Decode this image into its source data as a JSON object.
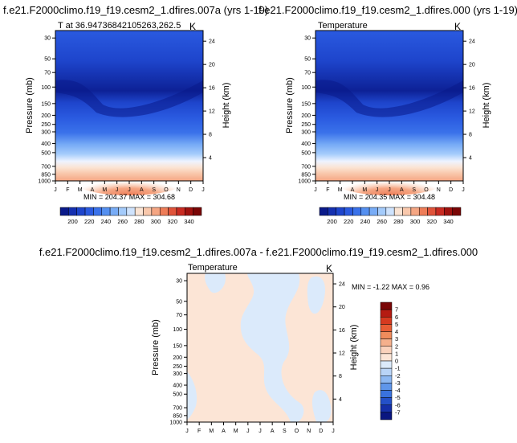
{
  "chart_data": [
    {
      "type": "heatmap",
      "title": "f.e21.F2000climo.f19_f19.cesm2_1.dfires.007a (yrs 1-19)",
      "subtitle_left": "T at 36.94736842105263,262.5",
      "subtitle_right": "K",
      "xlabel": "",
      "ylabel": "Pressure (mb)",
      "ylabel_right": "Height (km)",
      "x_ticks": [
        "J",
        "F",
        "M",
        "A",
        "M",
        "J",
        "J",
        "A",
        "S",
        "O",
        "N",
        "D",
        "J"
      ],
      "y_ticks": [
        "30",
        "50",
        "70",
        "100",
        "150",
        "200",
        "250",
        "300",
        "400",
        "500",
        "700",
        "850",
        "1000"
      ],
      "y2_ticks": [
        "24",
        "20",
        "16",
        "12",
        "8",
        "4"
      ],
      "stats": "MIN = 204.37  MAX = 304.68",
      "min": 204.37,
      "max": 304.68,
      "colorbar_labels": [
        "200",
        "220",
        "240",
        "260",
        "280",
        "300",
        "320",
        "340"
      ]
    },
    {
      "type": "heatmap",
      "title": "f.e21.F2000climo.f19_f19.cesm2_1.dfires.000 (yrs 1-19)",
      "subtitle_left": "Temperature",
      "subtitle_right": "K",
      "xlabel": "",
      "ylabel": "Pressure (mb)",
      "ylabel_right": "Height (km)",
      "x_ticks": [
        "J",
        "F",
        "M",
        "A",
        "M",
        "J",
        "J",
        "A",
        "S",
        "O",
        "N",
        "D",
        "J"
      ],
      "y_ticks": [
        "30",
        "50",
        "70",
        "100",
        "150",
        "200",
        "250",
        "300",
        "400",
        "500",
        "700",
        "850",
        "1000"
      ],
      "y2_ticks": [
        "24",
        "20",
        "16",
        "12",
        "8",
        "4"
      ],
      "stats": "MIN = 204.35  MAX = 304.48",
      "min": 204.35,
      "max": 304.48,
      "colorbar_labels": [
        "200",
        "220",
        "240",
        "260",
        "280",
        "300",
        "320",
        "340"
      ]
    },
    {
      "type": "heatmap",
      "title": "f.e21.F2000climo.f19_f19.cesm2_1.dfires.007a - f.e21.F2000climo.f19_f19.cesm2_1.dfires.000",
      "subtitle_left": "Temperature",
      "subtitle_right": "K",
      "xlabel": "",
      "ylabel": "Pressure (mb)",
      "ylabel_right": "Height (km)",
      "x_ticks": [
        "J",
        "F",
        "M",
        "A",
        "M",
        "J",
        "J",
        "A",
        "S",
        "O",
        "N",
        "D",
        "J"
      ],
      "y_ticks": [
        "30",
        "50",
        "70",
        "100",
        "150",
        "200",
        "250",
        "300",
        "400",
        "500",
        "700",
        "850",
        "1000"
      ],
      "y2_ticks": [
        "24",
        "20",
        "16",
        "12",
        "8",
        "4"
      ],
      "stats": "MIN =  -1.22  MAX =   0.96",
      "min": -1.22,
      "max": 0.96,
      "colorbar_labels": [
        "7",
        "6",
        "5",
        "4",
        "3",
        "2",
        "1",
        "0",
        "-1",
        "-2",
        "-3",
        "-4",
        "-5",
        "-6",
        "-7"
      ]
    }
  ],
  "palette": {
    "abs_colors": [
      "#0a1a8a",
      "#1530b0",
      "#1e45cc",
      "#2a5ae0",
      "#3a72ea",
      "#5590f0",
      "#78acf6",
      "#a4cbfb",
      "#cfe3fd",
      "#fbe4d4",
      "#f9c8ac",
      "#f5a683",
      "#ee7d58",
      "#e0533a",
      "#c92b22",
      "#a0120f",
      "#7a0606"
    ],
    "diff_colors": [
      "#7a0606",
      "#b51b12",
      "#d63a20",
      "#e85d35",
      "#f08c5c",
      "#f5b08c",
      "#fad2bc",
      "#fce5d6",
      "#dbeafb",
      "#b9d4f7",
      "#8db8f2",
      "#5f96ea",
      "#3a72de",
      "#2450c8",
      "#152fa8",
      "#0a1680"
    ]
  }
}
